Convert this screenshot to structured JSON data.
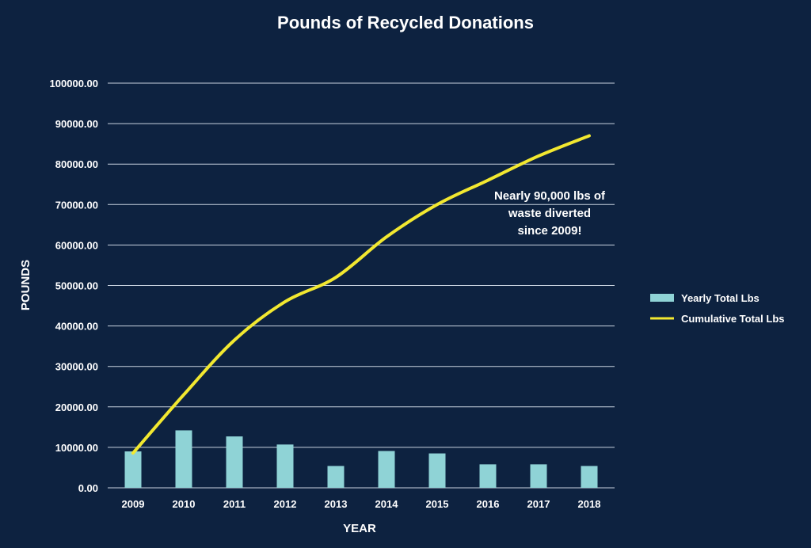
{
  "chart_data": {
    "type": "bar",
    "title": "Pounds of Recycled Donations",
    "xlabel": "YEAR",
    "ylabel": "POUNDS",
    "categories": [
      "2009",
      "2010",
      "2011",
      "2012",
      "2013",
      "2014",
      "2015",
      "2016",
      "2017",
      "2018"
    ],
    "y_ticks": [
      "0.00",
      "10000.00",
      "20000.00",
      "30000.00",
      "40000.00",
      "50000.00",
      "60000.00",
      "70000.00",
      "80000.00",
      "90000.00",
      "100000.00"
    ],
    "ylim": [
      0,
      100000
    ],
    "grid": true,
    "legend_position": "right",
    "series": [
      {
        "name": "Yearly Total Lbs",
        "type": "bar",
        "color": "#8fd3d6",
        "values": [
          9000,
          14200,
          12700,
          10700,
          5400,
          9100,
          8500,
          5800,
          5800,
          5400
        ]
      },
      {
        "name": "Cumulative Total Lbs",
        "type": "line",
        "color": "#f2e830",
        "values": [
          8600,
          23000,
          36500,
          46000,
          52000,
          62000,
          70000,
          76000,
          82000,
          87000
        ]
      }
    ],
    "annotation": [
      "Nearly 90,000 lbs of",
      "waste diverted",
      "since 2009!"
    ]
  },
  "colors": {
    "background": "#0d2240",
    "gridline": "#c9d3df",
    "text": "#ffffff"
  }
}
